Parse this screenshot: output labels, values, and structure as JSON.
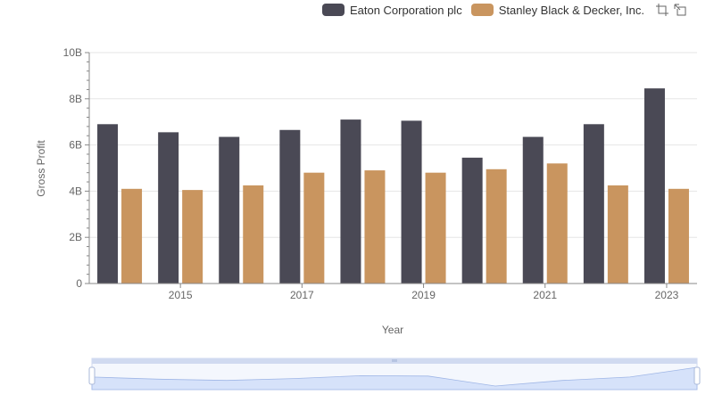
{
  "chart_data": {
    "type": "bar",
    "title": "",
    "xlabel": "Year",
    "ylabel": "Gross Profit",
    "x_ticks_shown": [
      "2015",
      "2017",
      "2019",
      "2021",
      "2023"
    ],
    "categories": [
      "2014",
      "2015",
      "2016",
      "2017",
      "2018",
      "2019",
      "2020",
      "2021",
      "2022",
      "2023"
    ],
    "y_ticks": [
      "0",
      "2B",
      "4B",
      "6B",
      "8B",
      "10B"
    ],
    "ylim": [
      0,
      10000000000
    ],
    "grid": true,
    "legend_position": "top-right",
    "series": [
      {
        "name": "Eaton Corporation plc",
        "color": "#4a4955",
        "values": [
          6900000000,
          6550000000,
          6350000000,
          6650000000,
          7100000000,
          7050000000,
          5450000000,
          6350000000,
          6900000000,
          8450000000
        ]
      },
      {
        "name": "Stanley Black & Decker, Inc.",
        "color": "#c9955f",
        "values": [
          4100000000,
          4050000000,
          4250000000,
          4800000000,
          4900000000,
          4800000000,
          4950000000,
          5200000000,
          4250000000,
          4100000000
        ]
      }
    ]
  },
  "toolbox": {
    "zoom_icon": "zoom-icon",
    "restore_icon": "restore-icon"
  },
  "slider": {
    "fill_color": "#dce6fa",
    "border_color": "#d0daf0"
  }
}
